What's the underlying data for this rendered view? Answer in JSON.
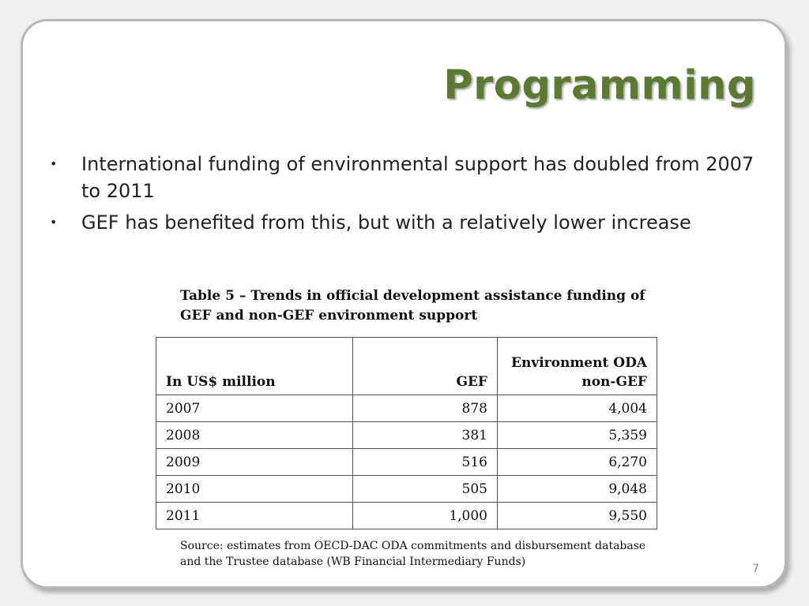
{
  "slide": {
    "title": "Programming",
    "bullets": [
      "International funding of environmental support has doubled from 2007 to 2011",
      "GEF has benefited from this, but with a relatively lower increase"
    ],
    "bullet_symbol": "•",
    "table_caption": "Table 5 – Trends in official development assistance funding of GEF and non-GEF environment support",
    "table": {
      "headers": [
        "In US$ million",
        "GEF",
        "Environment ODA non-GEF"
      ],
      "rows": [
        [
          "2007",
          "878",
          "4,004"
        ],
        [
          "2008",
          "381",
          "5,359"
        ],
        [
          "2009",
          "516",
          "6,270"
        ],
        [
          "2010",
          "505",
          "9,048"
        ],
        [
          "2011",
          "1,000",
          "9,550"
        ]
      ]
    },
    "source": "Source: estimates from OECD-DAC ODA commitments and disbursement database and the Trustee database (WB Financial Intermediary Funds)",
    "page_number": "7"
  },
  "colors": {
    "title": "#5a7a32",
    "frame_border": "#b8b8b8",
    "background": "#efefef"
  }
}
